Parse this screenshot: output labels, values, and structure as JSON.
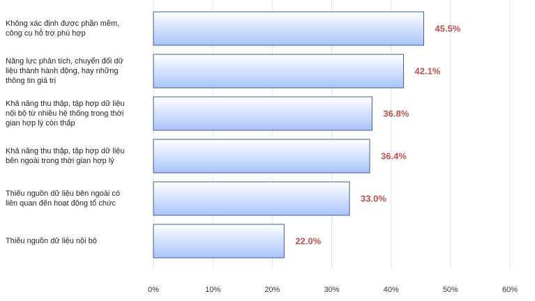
{
  "chart_data": {
    "type": "bar",
    "orientation": "horizontal",
    "categories": [
      "Không xác định được phần mềm, công cụ hỗ trợ phù hợp",
      "Năng lực phân tích, chuyển đổi dữ liệu thành hành động, hay những thông tin giá trị",
      "Khả năng thu thập, tập hợp dữ liệu nội bộ từ nhiều hệ thống trong thời gian hợp lý còn thấp",
      "Khả năng thu thập, tập hợp dữ liệu bên ngoài trong thời gian hợp lý",
      "Thiếu nguồn dữ liệu bên ngoài có liên quan đến hoạt động tổ chức",
      "Thiếu nguồn dữ liệu nội bộ"
    ],
    "values": [
      45.5,
      42.1,
      36.8,
      36.4,
      33.0,
      22.0
    ],
    "value_labels": [
      "45.5%",
      "42.1%",
      "36.8%",
      "36.4%",
      "33.0%",
      "22.0%"
    ],
    "color": "#a9c4fa",
    "xlim": [
      0,
      60
    ],
    "xticks": [
      {
        "value": 0,
        "label": "0%"
      },
      {
        "value": 10,
        "label": "10%"
      },
      {
        "value": 20,
        "label": "20%"
      },
      {
        "value": 30,
        "label": "30%"
      },
      {
        "value": 40,
        "label": "40%"
      },
      {
        "value": 50,
        "label": "50%"
      },
      {
        "value": 60,
        "label": "60%"
      }
    ],
    "grid": true
  }
}
